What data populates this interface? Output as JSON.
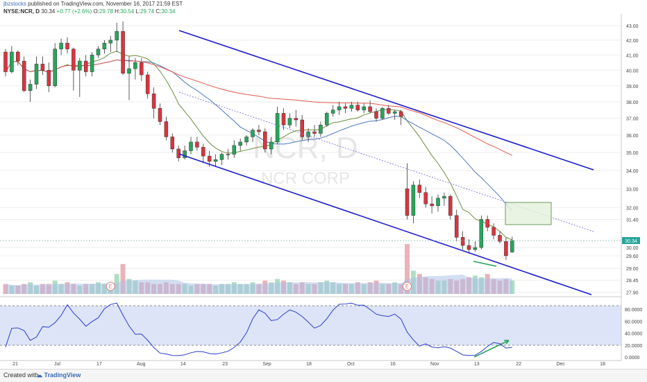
{
  "header": {
    "user": "jbzstocks",
    "published": "published on TradingView.com, November 16, 2017 21:59 EST",
    "symbol": "NYSE:NCR, D",
    "last": "30.34",
    "change": "+0.77 (+2.6%)",
    "open_label": "O:",
    "open": "29.78",
    "high_label": "H:",
    "high": "30.54",
    "low_label": "L:",
    "low": "29.74",
    "close_label": "C:",
    "close": "30.34"
  },
  "watermark": {
    "ticker": "NCR, D",
    "name": "NCR CORP"
  },
  "footer": {
    "created_with": "Created with",
    "brand": "TradingView"
  },
  "colors": {
    "up": "#26a65b",
    "down": "#d9353f",
    "channel": "#1a1acc",
    "ma_fast": "#6b8e3a",
    "ma_mid": "#4a78c2",
    "ma_slow": "#e0574a",
    "stoch": "#2a3bd0",
    "stoch_band": "#dde4f7"
  },
  "chart_data": [
    {
      "type": "candlestick",
      "price_axis_ticks": [
        "43.00",
        "42.00",
        "41.00",
        "40.00",
        "39.00",
        "38.00",
        "37.00",
        "36.00",
        "35.00",
        "34.00",
        "33.00",
        "32.00",
        "31.40",
        "30.00",
        "29.60",
        "29.00",
        "28.45",
        "27.90"
      ],
      "price_scale": "log",
      "last_price_label": "30.34",
      "x_ticks": [
        "21",
        "Jul",
        "17",
        "Aug",
        "14",
        "23",
        "Sep",
        "18",
        "Oct",
        "16",
        "Nov",
        "13",
        "22",
        "Dec",
        "18"
      ],
      "ohlc": [
        [
          41.2,
          41.4,
          39.6,
          39.9
        ],
        [
          39.9,
          41.6,
          39.8,
          41.2
        ],
        [
          41.2,
          41.3,
          40.3,
          40.6
        ],
        [
          40.6,
          40.9,
          38.6,
          38.7
        ],
        [
          38.7,
          39.4,
          38.0,
          39.1
        ],
        [
          39.1,
          40.9,
          38.8,
          40.4
        ],
        [
          40.4,
          40.9,
          39.7,
          40.0
        ],
        [
          40.0,
          40.5,
          38.6,
          39.0
        ],
        [
          39.0,
          41.8,
          38.9,
          41.4
        ],
        [
          41.4,
          42.1,
          41.0,
          41.8
        ],
        [
          41.8,
          42.2,
          41.1,
          41.4
        ],
        [
          41.4,
          41.5,
          38.7,
          40.0
        ],
        [
          40.0,
          40.8,
          38.3,
          40.6
        ],
        [
          40.6,
          41.0,
          39.6,
          39.9
        ],
        [
          39.9,
          41.2,
          39.6,
          41.0
        ],
        [
          41.0,
          41.6,
          40.8,
          41.4
        ],
        [
          41.4,
          42.0,
          41.1,
          41.8
        ],
        [
          41.8,
          42.3,
          41.2,
          42.0
        ],
        [
          42.0,
          43.2,
          41.2,
          42.6
        ],
        [
          42.6,
          43.3,
          39.7,
          39.8
        ],
        [
          39.8,
          40.9,
          38.1,
          40.1
        ],
        [
          40.1,
          40.8,
          39.4,
          40.5
        ],
        [
          40.5,
          40.8,
          39.3,
          39.7
        ],
        [
          39.7,
          39.9,
          38.2,
          38.5
        ],
        [
          38.5,
          38.9,
          37.0,
          37.6
        ],
        [
          37.6,
          37.9,
          36.6,
          36.8
        ],
        [
          36.8,
          37.1,
          35.7,
          35.9
        ],
        [
          35.9,
          36.1,
          35.0,
          35.2
        ],
        [
          35.2,
          35.4,
          34.5,
          34.7
        ],
        [
          34.7,
          35.4,
          34.6,
          35.1
        ],
        [
          35.1,
          35.9,
          34.9,
          35.6
        ],
        [
          35.6,
          35.9,
          35.1,
          35.3
        ],
        [
          35.3,
          35.5,
          34.4,
          34.8
        ],
        [
          34.8,
          35.1,
          34.2,
          34.5
        ],
        [
          34.5,
          34.9,
          34.2,
          34.6
        ],
        [
          34.6,
          35.0,
          34.3,
          34.9
        ],
        [
          34.9,
          35.2,
          34.6,
          34.9
        ],
        [
          34.9,
          35.7,
          34.7,
          35.4
        ],
        [
          35.4,
          35.8,
          35.1,
          35.6
        ],
        [
          35.6,
          36.0,
          35.4,
          35.9
        ],
        [
          35.9,
          36.4,
          35.6,
          36.3
        ],
        [
          36.3,
          36.6,
          36.0,
          36.2
        ],
        [
          36.2,
          36.4,
          35.0,
          35.2
        ],
        [
          35.2,
          35.9,
          34.9,
          35.6
        ],
        [
          35.6,
          37.7,
          35.5,
          37.3
        ],
        [
          37.3,
          37.6,
          36.3,
          36.6
        ],
        [
          36.6,
          37.3,
          36.4,
          37.0
        ],
        [
          37.0,
          37.5,
          36.5,
          36.9
        ],
        [
          36.9,
          37.2,
          35.7,
          35.9
        ],
        [
          35.9,
          36.4,
          35.6,
          36.2
        ],
        [
          36.2,
          36.6,
          35.9,
          36.1
        ],
        [
          36.1,
          36.8,
          35.9,
          36.6
        ],
        [
          36.6,
          37.4,
          36.5,
          37.3
        ],
        [
          37.3,
          37.8,
          37.1,
          37.5
        ],
        [
          37.5,
          38.0,
          37.2,
          37.7
        ],
        [
          37.7,
          37.9,
          37.3,
          37.6
        ],
        [
          37.6,
          38.0,
          37.4,
          37.8
        ],
        [
          37.8,
          38.0,
          37.4,
          37.5
        ],
        [
          37.5,
          37.9,
          37.3,
          37.7
        ],
        [
          37.7,
          38.1,
          37.3,
          37.4
        ],
        [
          37.4,
          37.6,
          36.8,
          37.0
        ],
        [
          37.0,
          37.7,
          36.9,
          37.6
        ],
        [
          37.6,
          37.8,
          37.2,
          37.3
        ],
        [
          37.3,
          37.5,
          36.9,
          37.4
        ],
        [
          37.4,
          37.5,
          36.6,
          37.1
        ],
        [
          33.0,
          34.4,
          31.4,
          31.6
        ],
        [
          31.6,
          33.4,
          31.2,
          33.2
        ],
        [
          33.2,
          33.5,
          32.5,
          32.8
        ],
        [
          32.8,
          33.1,
          32.0,
          32.2
        ],
        [
          32.2,
          32.6,
          31.7,
          32.1
        ],
        [
          32.1,
          32.7,
          31.8,
          32.5
        ],
        [
          32.5,
          32.8,
          32.1,
          32.6
        ],
        [
          32.6,
          32.7,
          31.4,
          31.6
        ],
        [
          31.6,
          31.9,
          30.3,
          30.5
        ],
        [
          30.5,
          30.8,
          29.9,
          30.1
        ],
        [
          30.1,
          30.4,
          29.7,
          29.9
        ],
        [
          29.9,
          30.3,
          29.8,
          30.0
        ],
        [
          30.0,
          31.6,
          29.9,
          31.4
        ],
        [
          31.4,
          31.6,
          30.8,
          31.0
        ],
        [
          31.0,
          31.2,
          30.4,
          30.6
        ],
        [
          30.6,
          30.8,
          30.2,
          30.3
        ],
        [
          30.3,
          30.5,
          29.4,
          29.6
        ],
        [
          29.78,
          30.54,
          29.74,
          30.34
        ]
      ],
      "earnings_markers": [
        "E",
        "E"
      ]
    },
    {
      "type": "bar",
      "name": "Volume",
      "values": [
        6,
        5,
        5,
        6,
        7,
        5,
        6,
        6,
        8,
        6,
        7,
        6,
        5,
        6,
        6,
        7,
        6,
        6,
        12,
        18,
        9,
        8,
        7,
        7,
        6,
        6,
        7,
        6,
        6,
        6,
        5,
        6,
        6,
        6,
        5,
        6,
        6,
        7,
        6,
        6,
        7,
        6,
        8,
        7,
        9,
        8,
        7,
        6,
        7,
        6,
        6,
        7,
        8,
        7,
        6,
        6,
        6,
        7,
        6,
        7,
        8,
        6,
        6,
        7,
        6,
        30,
        14,
        12,
        10,
        9,
        8,
        8,
        9,
        8,
        9,
        10,
        11,
        10,
        12,
        9,
        8,
        9,
        8
      ]
    },
    {
      "type": "line",
      "name": "Stochastic",
      "y_ticks": [
        "80.0000",
        "60.0000",
        "40.0000",
        "20.0000",
        "0.0000"
      ],
      "ylim": [
        0,
        100
      ],
      "upper_band": 80,
      "lower_band": 20
    }
  ]
}
